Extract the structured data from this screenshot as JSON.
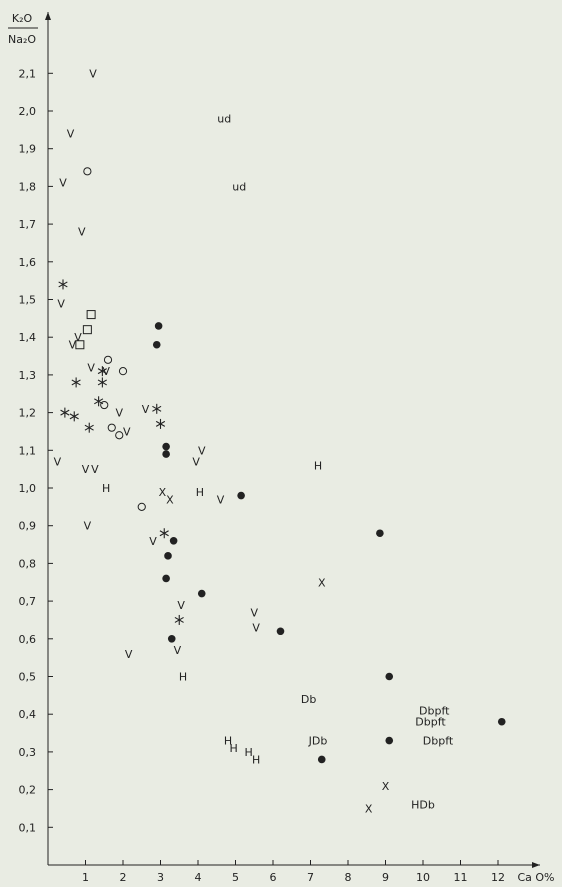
{
  "chart_data": {
    "type": "scatter",
    "title": "",
    "ylabel_num": "K₂O",
    "ylabel_den": "Na₂O",
    "xlabel": "Ca O%",
    "xlim": [
      0,
      13
    ],
    "ylim": [
      0,
      2.2
    ],
    "grid": false,
    "x_ticks": [
      "1",
      "2",
      "3",
      "4",
      "5",
      "6",
      "7",
      "8",
      "9",
      "10",
      "11",
      "12"
    ],
    "y_ticks": [
      "0,1",
      "0,2",
      "0,3",
      "0,4",
      "0,5",
      "0,6",
      "0,7",
      "0,8",
      "0,9",
      "1,0",
      "1,1",
      "1,2",
      "1,3",
      "1,4",
      "1,5",
      "1,6",
      "1,7",
      "1,8",
      "1,9",
      "2,0",
      "2,1"
    ],
    "series": [
      {
        "marker": "V",
        "points": [
          [
            1.2,
            2.1
          ],
          [
            0.6,
            1.94
          ],
          [
            0.4,
            1.81
          ],
          [
            0.9,
            1.68
          ],
          [
            0.35,
            1.49
          ],
          [
            0.8,
            1.4
          ],
          [
            0.65,
            1.38
          ],
          [
            1.15,
            1.32
          ],
          [
            1.55,
            1.31
          ],
          [
            1.9,
            1.2
          ],
          [
            2.6,
            1.21
          ],
          [
            2.1,
            1.15
          ],
          [
            0.25,
            1.07
          ],
          [
            1.0,
            1.05
          ],
          [
            1.25,
            1.05
          ],
          [
            4.1,
            1.1
          ],
          [
            3.95,
            1.07
          ],
          [
            4.6,
            0.97
          ],
          [
            1.05,
            0.9
          ],
          [
            2.8,
            0.86
          ],
          [
            3.55,
            0.69
          ],
          [
            3.45,
            0.57
          ],
          [
            2.15,
            0.56
          ],
          [
            5.5,
            0.67
          ],
          [
            5.55,
            0.63
          ]
        ]
      },
      {
        "marker": "circle",
        "points": [
          [
            1.05,
            1.84
          ],
          [
            1.6,
            1.34
          ],
          [
            2.0,
            1.31
          ],
          [
            1.5,
            1.22
          ],
          [
            1.7,
            1.16
          ],
          [
            1.9,
            1.14
          ],
          [
            2.5,
            0.95
          ]
        ]
      },
      {
        "marker": "square",
        "points": [
          [
            1.15,
            1.46
          ],
          [
            1.05,
            1.42
          ],
          [
            0.85,
            1.38
          ]
        ]
      },
      {
        "marker": "asterisk",
        "points": [
          [
            0.4,
            1.54
          ],
          [
            0.75,
            1.28
          ],
          [
            1.45,
            1.28
          ],
          [
            1.45,
            1.31
          ],
          [
            1.35,
            1.23
          ],
          [
            0.45,
            1.2
          ],
          [
            0.7,
            1.19
          ],
          [
            1.1,
            1.16
          ],
          [
            2.9,
            1.21
          ],
          [
            3.0,
            1.17
          ],
          [
            3.1,
            0.88
          ],
          [
            3.5,
            0.65
          ]
        ]
      },
      {
        "marker": "dot",
        "points": [
          [
            2.95,
            1.43
          ],
          [
            2.9,
            1.38
          ],
          [
            3.15,
            1.11
          ],
          [
            3.15,
            1.09
          ],
          [
            5.15,
            0.98
          ],
          [
            3.35,
            0.86
          ],
          [
            3.2,
            0.82
          ],
          [
            3.15,
            0.76
          ],
          [
            4.1,
            0.72
          ],
          [
            3.3,
            0.6
          ],
          [
            6.2,
            0.62
          ],
          [
            8.85,
            0.88
          ],
          [
            9.1,
            0.5
          ],
          [
            9.1,
            0.33
          ],
          [
            7.3,
            0.28
          ],
          [
            12.1,
            0.38
          ]
        ]
      },
      {
        "marker": "X",
        "points": [
          [
            3.05,
            0.99
          ],
          [
            3.25,
            0.97
          ],
          [
            7.3,
            0.75
          ],
          [
            9.0,
            0.21
          ],
          [
            8.55,
            0.15
          ]
        ]
      },
      {
        "marker": "H",
        "points": [
          [
            1.55,
            1.0
          ],
          [
            4.05,
            0.99
          ],
          [
            7.2,
            1.06
          ],
          [
            3.6,
            0.5
          ],
          [
            4.8,
            0.33
          ],
          [
            4.95,
            0.31
          ],
          [
            5.35,
            0.3
          ],
          [
            5.55,
            0.28
          ]
        ]
      }
    ],
    "annotations": [
      {
        "text": "ud",
        "x": 4.7,
        "y": 1.98
      },
      {
        "text": "ud",
        "x": 5.1,
        "y": 1.8
      },
      {
        "text": "Db",
        "x": 6.95,
        "y": 0.44
      },
      {
        "text": "JDb",
        "x": 7.2,
        "y": 0.33
      },
      {
        "text": "Dbpft",
        "x": 10.3,
        "y": 0.41
      },
      {
        "text": "Dbpft",
        "x": 10.2,
        "y": 0.38
      },
      {
        "text": "Dbpft",
        "x": 10.4,
        "y": 0.33
      },
      {
        "text": "HDb",
        "x": 10.0,
        "y": 0.16
      }
    ]
  }
}
